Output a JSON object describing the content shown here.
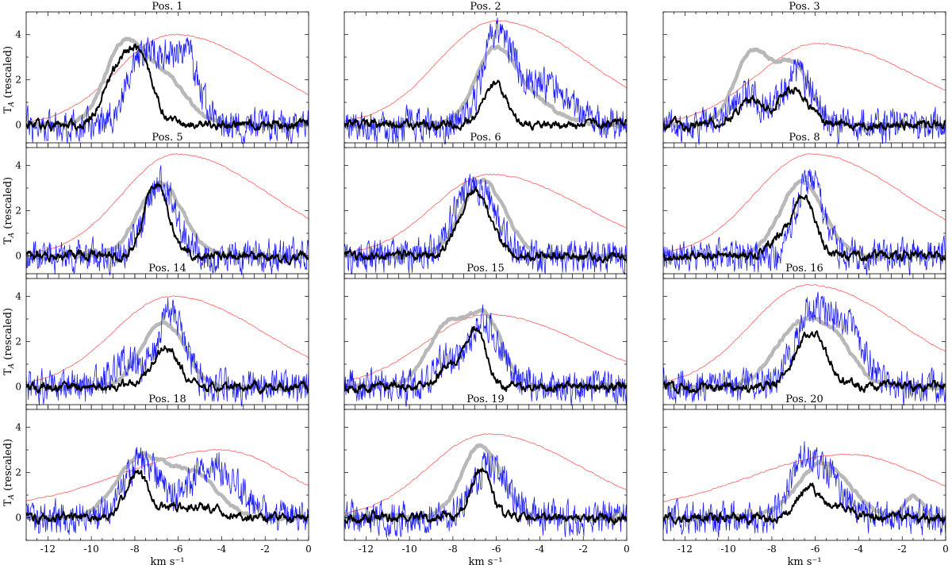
{
  "chart_data": {
    "type": "line",
    "layout": "4x3 grid of spectra",
    "xlabel": "km s⁻¹",
    "ylabel": "T",
    "ylabel_sub": "A",
    "ylabel_suffix": " (rescaled)",
    "xlim": [
      -13,
      0
    ],
    "ylim": [
      -1,
      5
    ],
    "xticks": [
      -12,
      -10,
      -8,
      -6,
      -4,
      -2,
      0
    ],
    "xtick_labels": [
      "-12",
      "-10",
      "-8",
      "-6",
      "-4",
      "-2",
      "0"
    ],
    "yticks": [
      0,
      2,
      4
    ],
    "ytick_labels": [
      "0",
      "2",
      "4"
    ],
    "series_styles": [
      {
        "name": "red",
        "color": "#ff7070",
        "width": 0.9
      },
      {
        "name": "gray",
        "color": "#b8b8b8",
        "width": 4.5
      },
      {
        "name": "blue",
        "color": "#1a1aff",
        "width": 0.8
      },
      {
        "name": "black",
        "color": "#000000",
        "width": 2.0
      }
    ],
    "panels": [
      {
        "title": "Pos. 1",
        "red": {
          "peak": 4.0,
          "center": -6.2,
          "left_width": 2.6,
          "right_width": 4.2,
          "floor": 0.0
        },
        "gray": [
          [
            3.4,
            -8.5,
            0.9
          ],
          [
            2.0,
            -6.6,
            1.0
          ]
        ],
        "blue": [
          [
            2.8,
            -7.5,
            0.8
          ],
          [
            2.6,
            -5.6,
            0.6
          ],
          [
            1.0,
            -6.5,
            0.7
          ]
        ],
        "black": [
          [
            2.0,
            -8.9,
            0.6
          ],
          [
            3.0,
            -7.8,
            0.6
          ]
        ]
      },
      {
        "title": "Pos. 2",
        "red": {
          "peak": 4.6,
          "center": -6.0,
          "left_width": 2.7,
          "right_width": 4.2,
          "floor": 0.0
        },
        "gray": [
          [
            3.2,
            -6.1,
            0.9
          ],
          [
            1.0,
            -4.3,
            1.1
          ]
        ],
        "blue": [
          [
            3.3,
            -6.0,
            0.6
          ],
          [
            1.9,
            -4.3,
            1.4
          ]
        ],
        "black": [
          [
            1.85,
            -6.1,
            0.55
          ]
        ]
      },
      {
        "title": "Pos. 3",
        "red": {
          "peak": 3.6,
          "center": -5.9,
          "left_width": 2.8,
          "right_width": 4.5,
          "floor": 0.0
        },
        "gray": [
          [
            3.2,
            -8.9,
            0.8
          ],
          [
            2.6,
            -7.0,
            0.8
          ]
        ],
        "blue": [
          [
            1.3,
            -9.2,
            0.7
          ],
          [
            2.3,
            -6.8,
            0.7
          ]
        ],
        "black": [
          [
            1.1,
            -9.0,
            0.6
          ],
          [
            1.5,
            -7.0,
            0.7
          ]
        ]
      },
      {
        "title": "Pos. 5",
        "red": {
          "peak": 4.5,
          "center": -6.1,
          "left_width": 2.5,
          "right_width": 4.3,
          "floor": 0.0
        },
        "gray": [
          [
            3.2,
            -6.8,
            1.0
          ]
        ],
        "blue": [
          [
            3.2,
            -6.8,
            0.7
          ]
        ],
        "black": [
          [
            3.2,
            -7.0,
            0.55
          ]
        ]
      },
      {
        "title": "Pos. 6",
        "red": {
          "peak": 3.6,
          "center": -6.3,
          "left_width": 2.6,
          "right_width": 4.3,
          "floor": 0.0
        },
        "gray": [
          [
            3.3,
            -6.6,
            1.0
          ]
        ],
        "blue": [
          [
            3.2,
            -7.0,
            0.9
          ]
        ],
        "black": [
          [
            2.85,
            -7.0,
            0.7
          ]
        ]
      },
      {
        "title": "Pos. 8",
        "red": {
          "peak": 4.5,
          "center": -6.2,
          "left_width": 2.6,
          "right_width": 4.3,
          "floor": 0.0
        },
        "gray": [
          [
            3.3,
            -6.6,
            1.0
          ]
        ],
        "blue": [
          [
            3.5,
            -6.3,
            0.6
          ]
        ],
        "black": [
          [
            2.6,
            -6.5,
            0.5
          ],
          [
            0.8,
            -7.6,
            0.5
          ]
        ]
      },
      {
        "title": "Pos. 14",
        "red": {
          "peak": 4.0,
          "center": -6.3,
          "left_width": 2.7,
          "right_width": 4.2,
          "floor": 0.0
        },
        "gray": [
          [
            2.8,
            -6.7,
            1.0
          ]
        ],
        "blue": [
          [
            3.4,
            -6.3,
            0.6
          ],
          [
            1.2,
            -8.3,
            0.6
          ]
        ],
        "black": [
          [
            1.75,
            -6.6,
            0.6
          ]
        ]
      },
      {
        "title": "Pos. 15",
        "red": {
          "peak": 3.2,
          "center": -6.4,
          "left_width": 2.9,
          "right_width": 4.4,
          "floor": 0.0
        },
        "gray": [
          [
            2.6,
            -8.3,
            0.9
          ],
          [
            2.9,
            -6.5,
            0.8
          ]
        ],
        "blue": [
          [
            2.8,
            -6.6,
            0.8
          ],
          [
            1.0,
            -8.5,
            0.5
          ]
        ],
        "black": [
          [
            2.3,
            -6.9,
            0.45
          ],
          [
            1.0,
            -8.0,
            0.6
          ]
        ]
      },
      {
        "title": "Pos. 16",
        "red": {
          "peak": 4.5,
          "center": -6.3,
          "left_width": 2.7,
          "right_width": 4.3,
          "floor": 0.0
        },
        "gray": [
          [
            2.9,
            -6.6,
            1.2
          ],
          [
            1.2,
            -4.8,
            0.8
          ]
        ],
        "blue": [
          [
            3.0,
            -6.2,
            0.8
          ],
          [
            2.4,
            -4.5,
            0.9
          ]
        ],
        "black": [
          [
            2.4,
            -6.2,
            0.7
          ]
        ]
      },
      {
        "title": "Pos. 18",
        "red": {
          "peak": 3.0,
          "center": -4.0,
          "left_width": 4.5,
          "right_width": 2.9,
          "floor": 0.4
        },
        "gray": [
          [
            2.6,
            -7.8,
            1.1
          ],
          [
            1.9,
            -5.3,
            1.1
          ]
        ],
        "blue": [
          [
            2.5,
            -7.7,
            0.8
          ],
          [
            2.3,
            -4.4,
            1.1
          ]
        ],
        "black": [
          [
            1.85,
            -7.9,
            0.5
          ],
          [
            0.5,
            -5.5,
            1.2
          ]
        ]
      },
      {
        "title": "Pos. 19",
        "red": {
          "peak": 3.7,
          "center": -6.4,
          "left_width": 2.7,
          "right_width": 4.3,
          "floor": 0.0
        },
        "gray": [
          [
            3.2,
            -6.7,
            0.9
          ]
        ],
        "blue": [
          [
            2.3,
            -6.3,
            0.8
          ]
        ],
        "black": [
          [
            2.2,
            -6.7,
            0.45
          ]
        ]
      },
      {
        "title": "Pos. 20",
        "red": {
          "peak": 2.8,
          "center": -4.5,
          "left_width": 4.5,
          "right_width": 3.5,
          "floor": 0.3
        },
        "gray": [
          [
            2.4,
            -5.6,
            1.2
          ],
          [
            1.0,
            -1.5,
            0.4
          ]
        ],
        "blue": [
          [
            2.1,
            -5.8,
            0.9
          ],
          [
            1.3,
            -6.8,
            0.5
          ]
        ],
        "black": [
          [
            1.4,
            -6.3,
            0.5
          ],
          [
            0.5,
            -4.8,
            0.6
          ]
        ]
      }
    ]
  }
}
